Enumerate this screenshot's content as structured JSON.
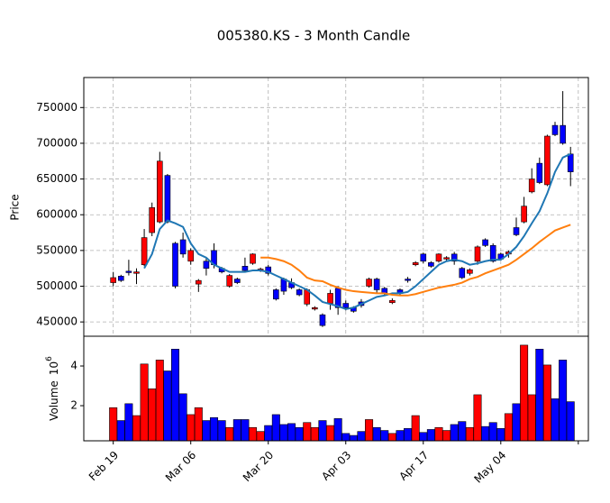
{
  "chart_data": {
    "type": "candlestick",
    "title": "005380.KS - 3 Month Candle",
    "ylabel": "Price",
    "volume_ylabel": "Volume",
    "volume_scale": {
      "base": "10",
      "exponent": "6"
    },
    "categories": [
      "Feb 19",
      null,
      null,
      null,
      null,
      null,
      null,
      null,
      null,
      null,
      "Mar 06",
      null,
      null,
      null,
      null,
      null,
      null,
      null,
      null,
      null,
      "Mar 20",
      null,
      null,
      null,
      null,
      null,
      null,
      null,
      null,
      null,
      "Apr 03",
      null,
      null,
      null,
      null,
      null,
      null,
      null,
      null,
      null,
      "Apr 17",
      null,
      null,
      null,
      null,
      null,
      null,
      null,
      null,
      null,
      "May 04",
      null,
      null,
      null,
      null,
      null,
      null,
      null,
      null,
      null
    ],
    "xlim": [
      -3.8,
      61.3
    ],
    "xticks": [
      0,
      10,
      20,
      30,
      40,
      50,
      60
    ],
    "open": [
      505000,
      514000,
      521000,
      518000,
      530000,
      575000,
      590000,
      655000,
      560000,
      565000,
      535000,
      503000,
      535000,
      550000,
      525000,
      500000,
      510000,
      528000,
      532000,
      522000,
      527000,
      495000,
      510000,
      505000,
      495000,
      475000,
      468000,
      460000,
      476000,
      497000,
      476000,
      470000,
      478000,
      500000,
      510000,
      497000,
      477000,
      495000,
      510000,
      530000,
      545000,
      533000,
      535000,
      538000,
      545000,
      525000,
      518000,
      535000,
      565000,
      557000,
      545000,
      545000,
      582000,
      590000,
      632000,
      672000,
      642000,
      725000,
      725000,
      685000
    ],
    "high": [
      520000,
      516000,
      537000,
      525000,
      580000,
      617000,
      688000,
      657000,
      562000,
      575000,
      553000,
      510000,
      540000,
      560000,
      527000,
      517000,
      512000,
      540000,
      546000,
      526000,
      530000,
      497000,
      512000,
      511000,
      497000,
      497000,
      472000,
      462000,
      495000,
      500000,
      480000,
      472000,
      482000,
      512000,
      512000,
      499000,
      483000,
      497000,
      513000,
      535000,
      547000,
      535000,
      546000,
      542000,
      548000,
      527000,
      525000,
      557000,
      567000,
      560000,
      547000,
      550000,
      596000,
      625000,
      665000,
      680000,
      712000,
      730000,
      773000,
      695000
    ],
    "low": [
      500000,
      506000,
      515000,
      503000,
      528000,
      570000,
      588000,
      588000,
      497000,
      540000,
      530000,
      492000,
      515000,
      525000,
      518000,
      498000,
      503000,
      520000,
      530000,
      520000,
      515000,
      480000,
      488000,
      496000,
      486000,
      472000,
      466000,
      443000,
      467000,
      460000,
      466000,
      463000,
      470000,
      498000,
      490000,
      487000,
      475000,
      488000,
      505000,
      528000,
      532000,
      526000,
      533000,
      536000,
      530000,
      510000,
      515000,
      530000,
      555000,
      533000,
      536000,
      540000,
      570000,
      588000,
      630000,
      643000,
      640000,
      710000,
      698000,
      640000
    ],
    "close": [
      512000,
      508000,
      519000,
      520000,
      568000,
      610000,
      675000,
      590000,
      500000,
      545000,
      550000,
      508000,
      525000,
      530000,
      520000,
      515000,
      505000,
      522000,
      545000,
      524000,
      518000,
      482000,
      493000,
      498000,
      488000,
      495000,
      470000,
      445000,
      490000,
      470000,
      470000,
      465000,
      473000,
      510000,
      495000,
      490000,
      480000,
      490000,
      508000,
      533000,
      535000,
      528000,
      545000,
      540000,
      535000,
      512000,
      523000,
      555000,
      557000,
      535000,
      538000,
      548000,
      572000,
      612000,
      650000,
      645000,
      710000,
      712000,
      700000,
      660000
    ],
    "volume": [
      1.9,
      1.25,
      2.1,
      1.5,
      4.1,
      2.85,
      4.3,
      3.75,
      4.85,
      2.6,
      1.55,
      1.9,
      1.25,
      1.4,
      1.25,
      0.9,
      1.3,
      1.3,
      0.9,
      0.7,
      1.0,
      1.55,
      1.05,
      1.1,
      0.9,
      1.15,
      0.9,
      1.25,
      1.0,
      1.35,
      0.6,
      0.5,
      0.7,
      1.3,
      0.9,
      0.75,
      0.6,
      0.75,
      0.85,
      1.5,
      0.65,
      0.8,
      0.9,
      0.75,
      1.05,
      1.2,
      0.9,
      2.55,
      0.95,
      1.15,
      0.85,
      1.6,
      2.1,
      5.05,
      2.55,
      4.85,
      4.05,
      2.35,
      4.3,
      2.2
    ],
    "up_color": "#ff0000",
    "down_color": "#0000ff",
    "moving_averages": [
      {
        "color": "#1f77b4",
        "values": [
          null,
          null,
          null,
          null,
          525000,
          545000,
          580000,
          592000,
          588000,
          583000,
          560000,
          545000,
          540000,
          530000,
          525000,
          520000,
          520000,
          520000,
          522000,
          522000,
          520000,
          515000,
          510000,
          505000,
          500000,
          495000,
          487000,
          478000,
          475000,
          472000,
          468000,
          470000,
          475000,
          480000,
          485000,
          487000,
          490000,
          490000,
          492000,
          500000,
          510000,
          520000,
          530000,
          535000,
          537000,
          535000,
          530000,
          532000,
          535000,
          537000,
          537000,
          545000,
          555000,
          570000,
          588000,
          605000,
          630000,
          660000,
          680000,
          685000
        ]
      },
      {
        "color": "#ff7f0e",
        "values": [
          null,
          null,
          null,
          null,
          null,
          null,
          null,
          null,
          null,
          null,
          null,
          null,
          null,
          null,
          null,
          null,
          null,
          null,
          null,
          540000,
          540000,
          538000,
          535000,
          530000,
          522000,
          512000,
          508000,
          507000,
          502000,
          498000,
          495000,
          493000,
          492000,
          491000,
          490000,
          490000,
          488000,
          487000,
          487000,
          489000,
          492000,
          495000,
          498000,
          500000,
          502000,
          505000,
          510000,
          513000,
          518000,
          522000,
          526000,
          530000,
          537000,
          545000,
          553000,
          562000,
          570000,
          578000,
          582000,
          586000
        ]
      }
    ],
    "ylim": [
      430000,
      792000
    ],
    "yticks": [
      450000,
      500000,
      550000,
      600000,
      650000,
      700000,
      750000
    ],
    "volume_ylim": [
      0.23,
      5.5
    ],
    "volume_yticks": [
      2,
      4
    ],
    "grid": true
  }
}
